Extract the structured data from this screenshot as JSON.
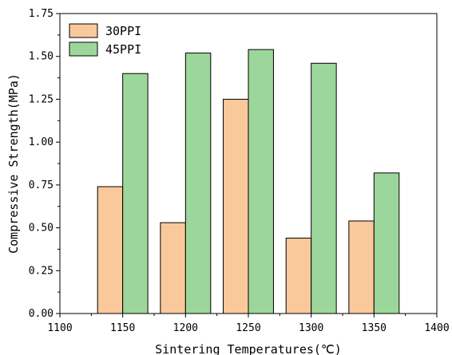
{
  "chart_data": {
    "type": "bar",
    "title": "",
    "xlabel": "Sintering Temperatures(℃)",
    "ylabel": "Compressive Strength(MPa)",
    "categories": [
      1150,
      1200,
      1250,
      1300,
      1350
    ],
    "xlim": [
      1100,
      1400
    ],
    "xticks": [
      "1100",
      "1150",
      "1200",
      "1250",
      "1300",
      "1350",
      "1400"
    ],
    "ylim": [
      0,
      1.75
    ],
    "yticks": [
      "0.00",
      "0.25",
      "0.50",
      "0.75",
      "1.00",
      "1.25",
      "1.50",
      "1.75"
    ],
    "grid": false,
    "legend_position": "top-left",
    "series": [
      {
        "name": "30PPI",
        "color": "#f9c89b",
        "values": [
          0.74,
          0.53,
          1.25,
          0.44,
          0.54
        ]
      },
      {
        "name": "45PPI",
        "color": "#9dd69a",
        "values": [
          1.4,
          1.52,
          1.54,
          1.46,
          0.82
        ]
      }
    ]
  }
}
